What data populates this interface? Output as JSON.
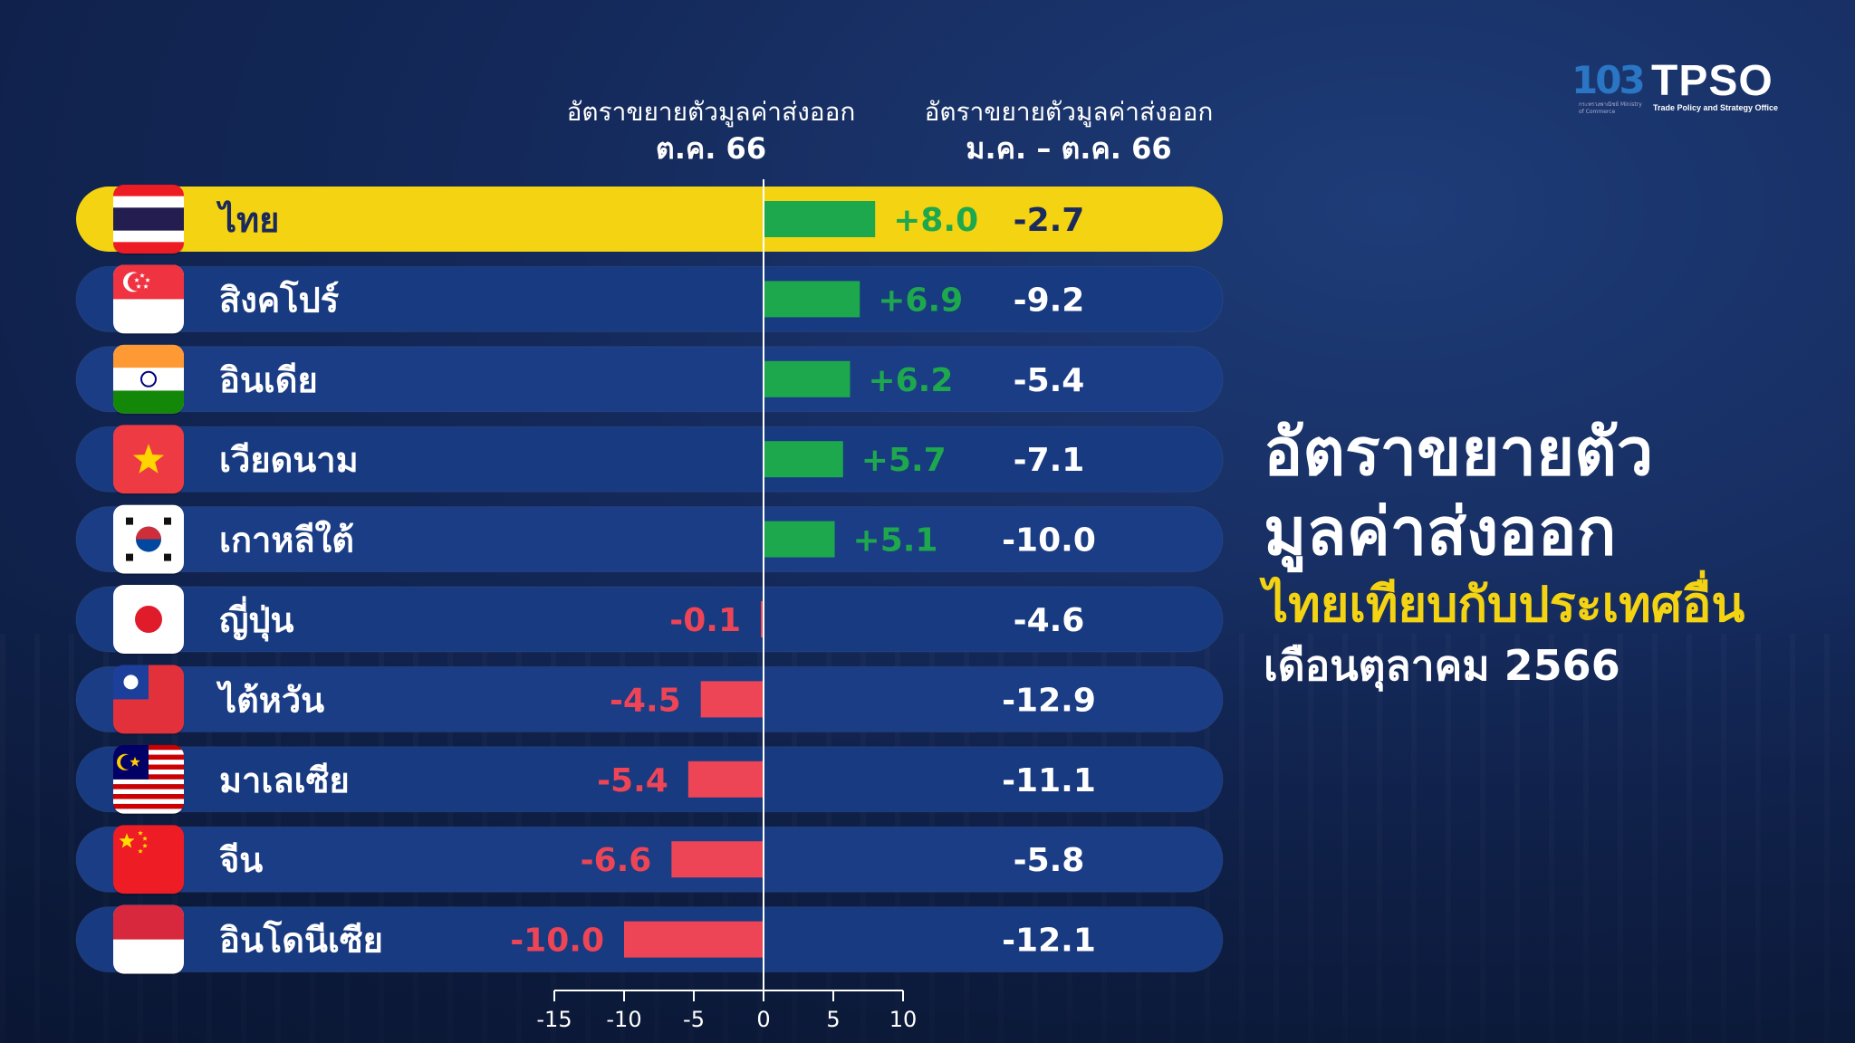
{
  "logos": {
    "left_number": "103",
    "left_sub": "กระทรวงพาณิชย์ Ministry of Commerce",
    "right_name": "TPSO",
    "right_sub": "Trade Policy and Strategy Office"
  },
  "headers": {
    "col1_line1": "อัตราขยายตัวมูลค่าส่งออก",
    "col1_line2": "ต.ค. 66",
    "col2_line1": "อัตราขยายตัวมูลค่าส่งออก",
    "col2_line2": "ม.ค. – ต.ค. 66"
  },
  "title": {
    "line1": "อัตราขยายตัว",
    "line2": "มูลค่าส่งออก",
    "line3": "ไทยเทียบกับประเทศอื่น",
    "line4": "เดือนตุลาคม 2566"
  },
  "colors": {
    "highlight_row": "#f4d312",
    "row_dark": "#1b3d86",
    "row_alt": "#183a80",
    "positive": "#1ea84d",
    "positive_text": "#1ea84d",
    "negative": "#ee4556",
    "negative_text": "#ee4556"
  },
  "chart_data": {
    "type": "bar",
    "orientation": "horizontal",
    "categories": [
      "ไทย",
      "สิงคโปร์",
      "อินเดีย",
      "เวียดนาม",
      "เกาหลีใต้",
      "ญี่ปุ่น",
      "ไต้หวัน",
      "มาเลเซีย",
      "จีน",
      "อินโดนีเซีย"
    ],
    "flags": [
      "thailand-flag",
      "singapore-flag",
      "india-flag",
      "vietnam-flag",
      "south-korea-flag",
      "japan-flag",
      "taiwan-flag",
      "malaysia-flag",
      "china-flag",
      "indonesia-flag"
    ],
    "values": [
      8.0,
      6.9,
      6.2,
      5.7,
      5.1,
      -0.1,
      -4.5,
      -5.4,
      -6.6,
      -10.0
    ],
    "value_labels": [
      "+8.0",
      "+6.9",
      "+6.2",
      "+5.7",
      "+5.1",
      "-0.1",
      "-4.5",
      "-5.4",
      "-6.6",
      "-10.0"
    ],
    "ytd_labels": [
      "-2.7",
      "-9.2",
      "-5.4",
      "-7.1",
      "-10.0",
      "-4.6",
      "-12.9",
      "-11.1",
      "-5.8",
      "-12.1"
    ],
    "xlim": [
      -15,
      10
    ],
    "xticks": [
      -15,
      -10,
      -5,
      0,
      5,
      10
    ],
    "xtick_labels": [
      "-15",
      "-10",
      "-5",
      "0",
      "5",
      "10"
    ],
    "highlight_index": 0
  }
}
